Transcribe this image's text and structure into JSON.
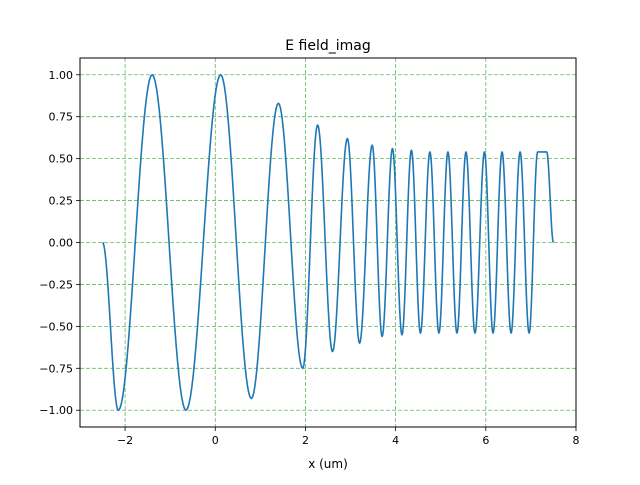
{
  "chart_data": {
    "type": "line",
    "title": "E field_imag",
    "xlabel": "x (um)",
    "ylabel": "",
    "xlim": [
      -3.0,
      8.0
    ],
    "ylim": [
      -1.1,
      1.1
    ],
    "xticks": [
      -2,
      0,
      2,
      4,
      6,
      8
    ],
    "yticks": [
      1.0,
      0.75,
      0.5,
      0.25,
      0.0,
      -0.25,
      -0.5,
      -0.75,
      -1.0
    ],
    "xtick_labels": [
      "−2",
      "0",
      "2",
      "4",
      "6",
      "8"
    ],
    "ytick_labels": [
      "1.00",
      "0.75",
      "0.50",
      "0.25",
      "0.00",
      "−0.25",
      "−0.50",
      "−0.75",
      "−1.00"
    ],
    "grid": true,
    "grid_color": "#2ca02c",
    "series_color": "#1f77b4",
    "series": [
      {
        "x": [
          -2.5,
          -2.15,
          -1.4,
          -0.65,
          0.12,
          0.8,
          1.4,
          1.94,
          2.27,
          2.6,
          2.93,
          3.2,
          3.48,
          3.7,
          3.93,
          4.14,
          4.35,
          4.55,
          4.76,
          4.96,
          5.16,
          5.36,
          5.56,
          5.76,
          5.97,
          6.16,
          6.36,
          6.56,
          6.76,
          6.96,
          7.15,
          7.35,
          7.5
        ],
        "y": [
          0.0,
          -1.0,
          1.0,
          -1.0,
          1.0,
          -0.93,
          0.83,
          -0.75,
          0.7,
          -0.65,
          0.62,
          -0.6,
          0.58,
          -0.56,
          0.56,
          -0.55,
          0.55,
          -0.54,
          0.54,
          -0.54,
          0.54,
          -0.54,
          0.54,
          -0.54,
          0.54,
          -0.54,
          0.54,
          -0.54,
          0.54,
          -0.54,
          0.54,
          0.54,
          0.0
        ]
      }
    ]
  }
}
